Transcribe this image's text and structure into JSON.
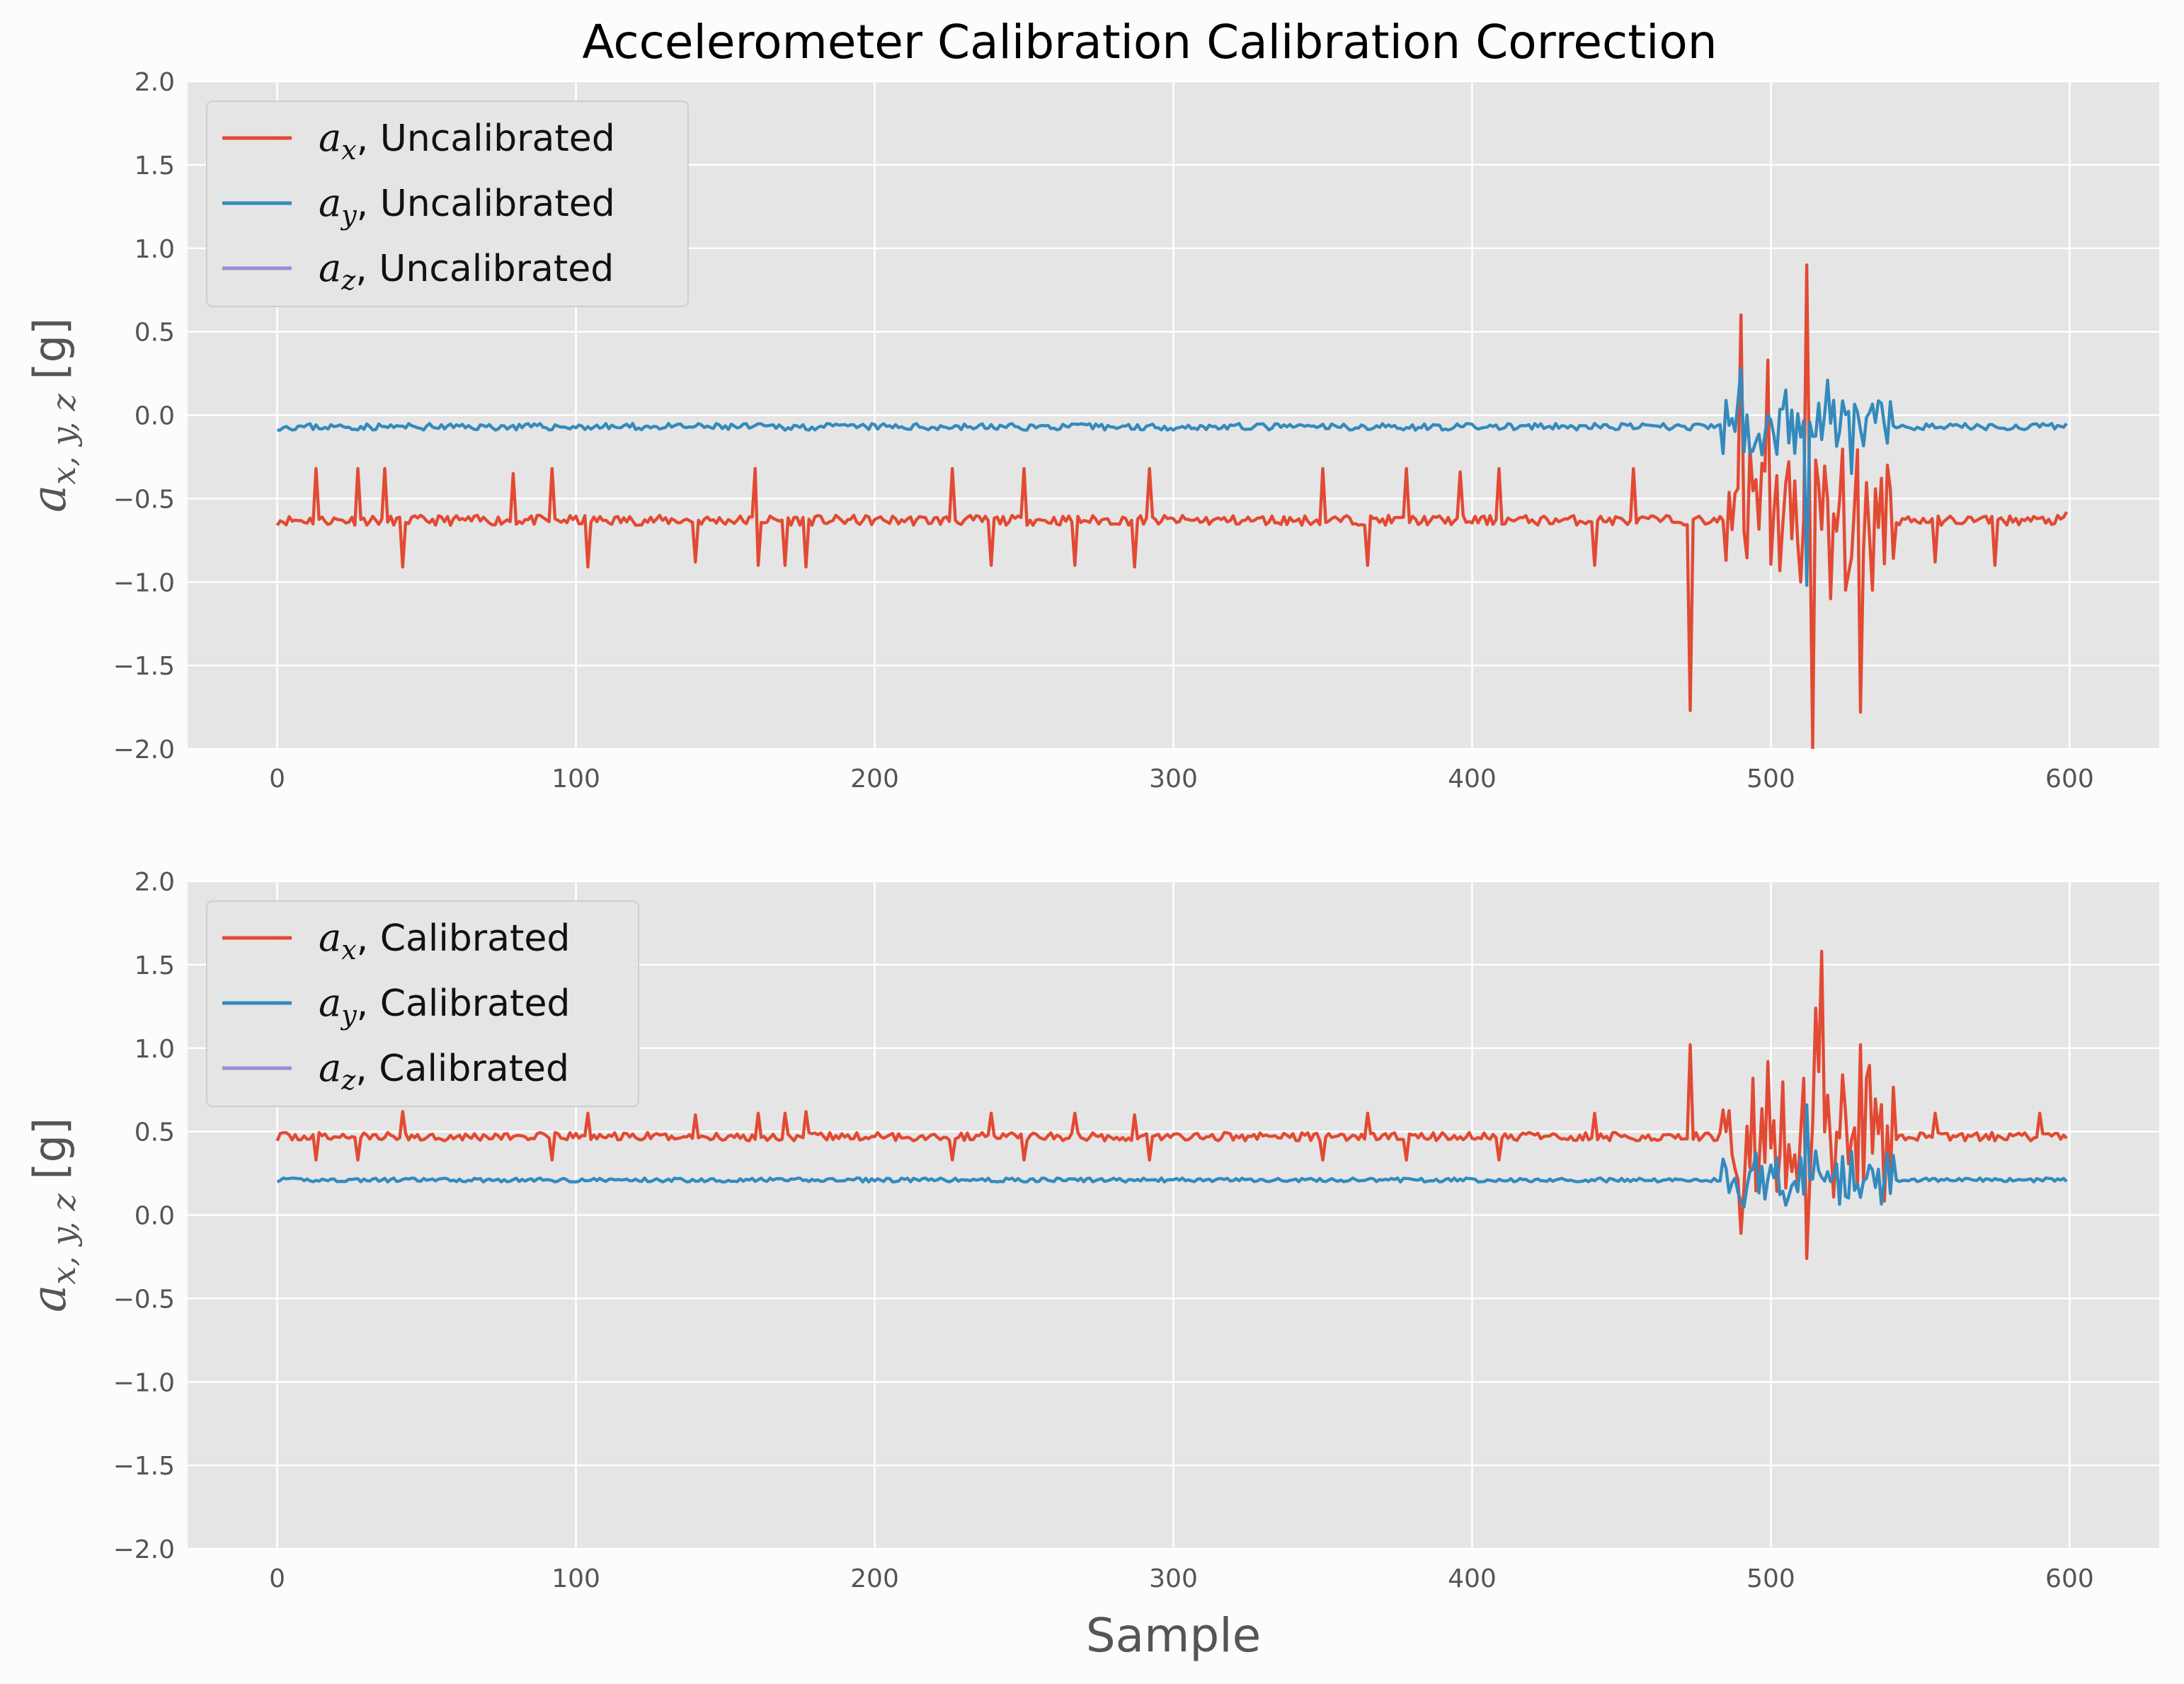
{
  "figure": {
    "title": "Accelerometer Calibration Calibration Correction",
    "background": "#fcfcfc",
    "axes_facecolor": "#e5e5e5",
    "grid_color": "#ffffff",
    "xtick_labels": [
      "0",
      "100",
      "200",
      "300",
      "400",
      "500",
      "600"
    ],
    "ytick_labels": [
      "2.0",
      "1.5",
      "1.0",
      "0.5",
      "0.0",
      "−0.5",
      "−1.0",
      "−1.5",
      "−2.0"
    ]
  },
  "chart_data": [
    {
      "type": "line",
      "title": "Accelerometer Calibration Calibration Correction",
      "xlabel": "",
      "ylabel": "a_{x,y,z} [g]",
      "ylabel_parts": {
        "var": "a",
        "sub": "x, y, z",
        "unit": " [g]"
      },
      "xlim": [
        -30,
        630
      ],
      "ylim": [
        -2.0,
        2.0
      ],
      "grid": true,
      "legend": "top-left",
      "series": [
        {
          "name": "a_x, Uncalibrated",
          "sub": "x",
          "suffix": ", Uncalibrated",
          "color": "#e24a33",
          "base": -0.63,
          "noise": 0.03,
          "spike_dir": "mixed",
          "seed": 11
        },
        {
          "name": "a_y, Uncalibrated",
          "sub": "y",
          "suffix": ", Uncalibrated",
          "color": "#348abd",
          "base": -0.07,
          "noise": 0.02,
          "spike_dir": "none",
          "seed": 23
        },
        {
          "name": "a_z, Uncalibrated",
          "sub": "z",
          "suffix": ", Uncalibrated",
          "color": "#988ed5",
          "base": null,
          "noise": 0,
          "spike_dir": "none",
          "seed": 0
        }
      ],
      "x": {
        "start": 0,
        "end": 599,
        "step": 1
      },
      "features": [
        {
          "series": 0,
          "x": 13,
          "y": -0.32
        },
        {
          "series": 0,
          "x": 27,
          "y": -0.32
        },
        {
          "series": 0,
          "x": 36,
          "y": -0.32
        },
        {
          "series": 0,
          "x": 42,
          "y": -0.91
        },
        {
          "series": 0,
          "x": 79,
          "y": -0.35
        },
        {
          "series": 0,
          "x": 92,
          "y": -0.32
        },
        {
          "series": 0,
          "x": 104,
          "y": -0.91
        },
        {
          "series": 0,
          "x": 140,
          "y": -0.88
        },
        {
          "series": 0,
          "x": 160,
          "y": -0.32
        },
        {
          "series": 0,
          "x": 161,
          "y": -0.9
        },
        {
          "series": 0,
          "x": 170,
          "y": -0.9
        },
        {
          "series": 0,
          "x": 177,
          "y": -0.91
        },
        {
          "series": 0,
          "x": 226,
          "y": -0.32
        },
        {
          "series": 0,
          "x": 239,
          "y": -0.9
        },
        {
          "series": 0,
          "x": 250,
          "y": -0.32
        },
        {
          "series": 0,
          "x": 267,
          "y": -0.9
        },
        {
          "series": 0,
          "x": 287,
          "y": -0.91
        },
        {
          "series": 0,
          "x": 292,
          "y": -0.32
        },
        {
          "series": 0,
          "x": 350,
          "y": -0.32
        },
        {
          "series": 0,
          "x": 365,
          "y": -0.9
        },
        {
          "series": 0,
          "x": 378,
          "y": -0.32
        },
        {
          "series": 0,
          "x": 396,
          "y": -0.34
        },
        {
          "series": 0,
          "x": 409,
          "y": -0.32
        },
        {
          "series": 0,
          "x": 441,
          "y": -0.9
        },
        {
          "series": 0,
          "x": 454,
          "y": -0.32
        },
        {
          "series": 0,
          "x": 473,
          "y": -1.77
        },
        {
          "series": 0,
          "x": 485,
          "y": -0.87
        },
        {
          "series": 0,
          "x": 490,
          "y": 0.6
        },
        {
          "series": 0,
          "x": 499,
          "y": 0.33
        },
        {
          "series": 0,
          "x": 510,
          "y": -1.0
        },
        {
          "series": 0,
          "x": 512,
          "y": 0.9
        },
        {
          "series": 0,
          "x": 514,
          "y": -2.0
        },
        {
          "series": 0,
          "x": 520,
          "y": -1.1
        },
        {
          "series": 0,
          "x": 530,
          "y": -1.78
        },
        {
          "series": 0,
          "x": 539,
          "y": -0.3
        },
        {
          "series": 0,
          "x": 555,
          "y": -0.88
        },
        {
          "series": 0,
          "x": 575,
          "y": -0.9
        },
        {
          "series": 0,
          "x": 599,
          "y": -0.58
        },
        {
          "series": 1,
          "x": 490,
          "y": 0.28
        },
        {
          "series": 1,
          "x": 505,
          "y": 0.15
        },
        {
          "series": 1,
          "x": 512,
          "y": -1.02
        },
        {
          "series": 1,
          "x": 519,
          "y": 0.21
        },
        {
          "series": 1,
          "x": 527,
          "y": -0.35
        },
        {
          "series": 1,
          "x": 599,
          "y": -0.05
        }
      ]
    },
    {
      "type": "line",
      "title": "",
      "xlabel": "Sample",
      "ylabel": "a_{x,y,z} [g]",
      "ylabel_parts": {
        "var": "a",
        "sub": "x, y, z",
        "unit": " [g]"
      },
      "xlim": [
        -30,
        630
      ],
      "ylim": [
        -2.0,
        2.0
      ],
      "grid": true,
      "legend": "top-left",
      "series": [
        {
          "name": "a_x, Calibrated",
          "sub": "x",
          "suffix": ", Calibrated",
          "color": "#e24a33",
          "base": 0.47,
          "noise": 0.025,
          "spike_dir": "mixed",
          "seed": 37
        },
        {
          "name": "a_y, Calibrated",
          "sub": "y",
          "suffix": ", Calibrated",
          "color": "#348abd",
          "base": 0.21,
          "noise": 0.012,
          "spike_dir": "none",
          "seed": 41
        },
        {
          "name": "a_z, Calibrated",
          "sub": "z",
          "suffix": ", Calibrated",
          "color": "#988ed5",
          "base": null,
          "noise": 0,
          "spike_dir": "none",
          "seed": 0
        }
      ],
      "x": {
        "start": 0,
        "end": 599,
        "step": 1
      },
      "features": [
        {
          "series": 0,
          "x": 13,
          "y": 0.33
        },
        {
          "series": 0,
          "x": 27,
          "y": 0.33
        },
        {
          "series": 0,
          "x": 42,
          "y": 0.62
        },
        {
          "series": 0,
          "x": 92,
          "y": 0.33
        },
        {
          "series": 0,
          "x": 104,
          "y": 0.61
        },
        {
          "series": 0,
          "x": 140,
          "y": 0.6
        },
        {
          "series": 0,
          "x": 161,
          "y": 0.61
        },
        {
          "series": 0,
          "x": 170,
          "y": 0.61
        },
        {
          "series": 0,
          "x": 177,
          "y": 0.62
        },
        {
          "series": 0,
          "x": 226,
          "y": 0.33
        },
        {
          "series": 0,
          "x": 239,
          "y": 0.61
        },
        {
          "series": 0,
          "x": 250,
          "y": 0.33
        },
        {
          "series": 0,
          "x": 267,
          "y": 0.61
        },
        {
          "series": 0,
          "x": 287,
          "y": 0.6
        },
        {
          "series": 0,
          "x": 292,
          "y": 0.33
        },
        {
          "series": 0,
          "x": 350,
          "y": 0.33
        },
        {
          "series": 0,
          "x": 365,
          "y": 0.61
        },
        {
          "series": 0,
          "x": 378,
          "y": 0.33
        },
        {
          "series": 0,
          "x": 409,
          "y": 0.33
        },
        {
          "series": 0,
          "x": 441,
          "y": 0.61
        },
        {
          "series": 0,
          "x": 473,
          "y": 1.02
        },
        {
          "series": 0,
          "x": 490,
          "y": -0.11
        },
        {
          "series": 0,
          "x": 510,
          "y": 0.5
        },
        {
          "series": 0,
          "x": 512,
          "y": -0.26
        },
        {
          "series": 0,
          "x": 515,
          "y": 1.24
        },
        {
          "series": 0,
          "x": 517,
          "y": 1.58
        },
        {
          "series": 0,
          "x": 530,
          "y": 1.02
        },
        {
          "series": 0,
          "x": 555,
          "y": 0.61
        },
        {
          "series": 0,
          "x": 590,
          "y": 0.61
        },
        {
          "series": 0,
          "x": 599,
          "y": 0.46
        },
        {
          "series": 1,
          "x": 490,
          "y": 0.08
        },
        {
          "series": 1,
          "x": 500,
          "y": 0.3
        },
        {
          "series": 1,
          "x": 512,
          "y": 0.66
        },
        {
          "series": 1,
          "x": 520,
          "y": 0.2
        },
        {
          "series": 1,
          "x": 527,
          "y": 0.38
        },
        {
          "series": 1,
          "x": 599,
          "y": 0.2
        }
      ]
    }
  ]
}
